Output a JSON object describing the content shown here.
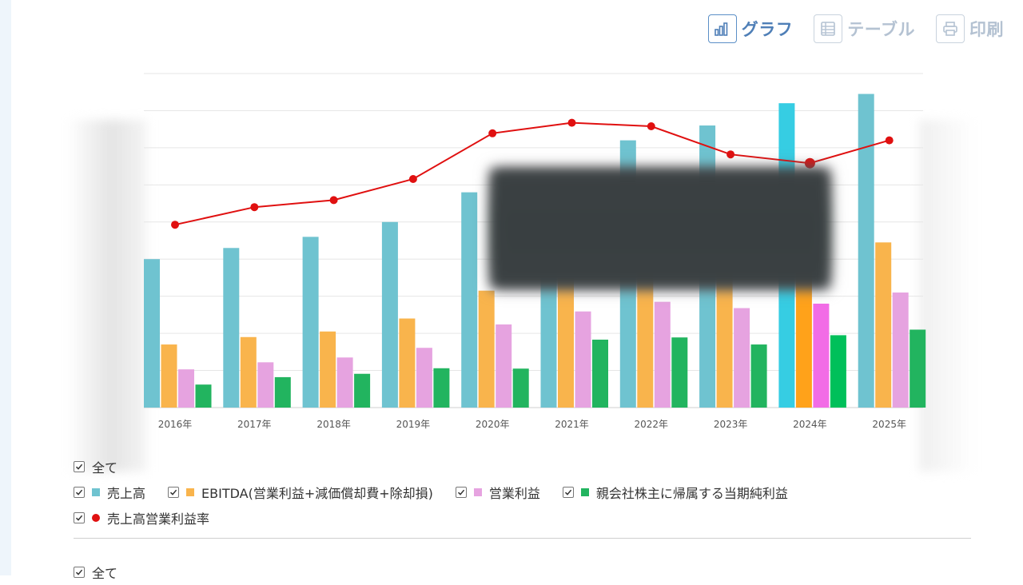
{
  "toolbar": {
    "graph_label": "グラフ",
    "table_label": "テーブル",
    "print_label": "印刷"
  },
  "chart_data": {
    "type": "bar",
    "categories": [
      "2016年",
      "2017年",
      "2018年",
      "2019年",
      "2020年",
      "2021年",
      "2022年",
      "2023年",
      "2024年",
      "2025年"
    ],
    "series": [
      {
        "name": "売上高",
        "type": "bar",
        "color": "#6fc3d0",
        "values": [
          400,
          430,
          460,
          500,
          580,
          600,
          720,
          760,
          820,
          845
        ]
      },
      {
        "name": "EBITDA(営業利益+減価償却費+除却損)",
        "type": "bar",
        "color": "#f9b44c",
        "values": [
          170,
          190,
          205,
          240,
          315,
          350,
          390,
          410,
          420,
          445
        ]
      },
      {
        "name": "営業利益",
        "type": "bar",
        "color": "#e6a3e0",
        "values": [
          103,
          122,
          135,
          161,
          224,
          259,
          285,
          268,
          280,
          310
        ]
      },
      {
        "name": "親会社株主に帰属する当期純利益",
        "type": "bar",
        "color": "#22b45f",
        "values": [
          62,
          82,
          91,
          106,
          105,
          183,
          189,
          170,
          195,
          210
        ]
      },
      {
        "name": "売上高営業利益率",
        "type": "line",
        "color": "#e01010",
        "values": [
          5.2,
          5.7,
          5.9,
          6.5,
          7.8,
          8.1,
          8.0,
          7.2,
          6.95,
          7.6
        ]
      }
    ],
    "highlight_index": 8,
    "highlight_colors": [
      "#36cde3",
      "#ffa21a",
      "#f26ce6",
      "#00c05a"
    ],
    "ylim_left": [
      0,
      900
    ],
    "ylim_right": [
      0,
      9.5
    ],
    "grid": true
  },
  "legend": {
    "all_label": "全て",
    "items": [
      {
        "label": "売上高",
        "color": "#6fc3d0",
        "shape": "square"
      },
      {
        "label": "EBITDA(営業利益+減価償却費+除却損)",
        "color": "#f9b44c",
        "shape": "square"
      },
      {
        "label": "営業利益",
        "color": "#e6a3e0",
        "shape": "square"
      },
      {
        "label": "親会社株主に帰属する当期純利益",
        "color": "#22b45f",
        "shape": "square"
      },
      {
        "label": "売上高営業利益率",
        "color": "#e01010",
        "shape": "circle"
      }
    ],
    "second_all_label": "全て"
  }
}
